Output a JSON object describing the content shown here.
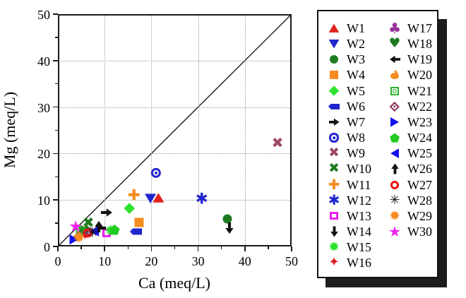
{
  "chart_data": {
    "type": "scatter",
    "title": "",
    "xlabel": "Ca (meq/L)",
    "ylabel": "Mg (meq/L)",
    "xlim": [
      0,
      50
    ],
    "ylim": [
      0,
      50
    ],
    "xticks": [
      0,
      10,
      20,
      30,
      40,
      50
    ],
    "yticks": [
      0,
      10,
      20,
      30,
      40,
      50
    ],
    "minor_tick_step": 5,
    "grid": {
      "style": "dotted",
      "color": "#9b9b9b",
      "positions": [
        10,
        20,
        30,
        40
      ]
    },
    "reference_line": {
      "type": "1:1 diagonal",
      "from": [
        0,
        0
      ],
      "to": [
        50,
        50
      ],
      "color": "#1a1a1a"
    },
    "legend_position": "outside-right boxed with drop shadow",
    "series": [
      {
        "name": "W1",
        "marker": "triangle-up",
        "color": "#e0251d",
        "points": [
          [
            21.5,
            10.5
          ]
        ]
      },
      {
        "name": "W2",
        "marker": "triangle-down",
        "color": "#2125cc",
        "points": [
          [
            19.8,
            10.3
          ]
        ]
      },
      {
        "name": "W3",
        "marker": "circle",
        "color": "#1f7a1f",
        "points": [
          [
            36.3,
            5.9
          ]
        ]
      },
      {
        "name": "W4",
        "marker": "square",
        "color": "#f68b1f",
        "points": [
          [
            17.4,
            5.1
          ]
        ]
      },
      {
        "name": "W5",
        "marker": "diamond",
        "color": "#2ee32e",
        "points": [
          [
            15.3,
            8.2
          ]
        ]
      },
      {
        "name": "W6",
        "marker": "flat-left",
        "color": "#2125cc",
        "points": [
          [
            16.7,
            3.2
          ]
        ]
      },
      {
        "name": "W7",
        "marker": "arrow-right",
        "color": "#111111",
        "points": [
          [
            10.4,
            7.3
          ]
        ]
      },
      {
        "name": "W8",
        "marker": "donut",
        "color": "#2125cc",
        "points": [
          [
            21.0,
            15.8
          ]
        ]
      },
      {
        "name": "W9",
        "marker": "x-cross",
        "color": "#9e4a66",
        "points": [
          [
            47.0,
            22.4
          ]
        ]
      },
      {
        "name": "W10",
        "marker": "x-cross",
        "color": "#1f7a1f",
        "points": [
          [
            6.5,
            5.2
          ]
        ]
      },
      {
        "name": "W11",
        "marker": "plus",
        "color": "#f68b1f",
        "points": [
          [
            16.3,
            10.9
          ]
        ]
      },
      {
        "name": "W12",
        "marker": "asterisk-heavy",
        "color": "#2125cc",
        "points": [
          [
            30.8,
            10.2
          ]
        ]
      },
      {
        "name": "W13",
        "marker": "open-square",
        "color": "#ee22ee",
        "points": [
          [
            10.4,
            2.9
          ]
        ]
      },
      {
        "name": "W14",
        "marker": "arrow-down",
        "color": "#111111",
        "points": [
          [
            36.7,
            3.9
          ]
        ]
      },
      {
        "name": "W15",
        "marker": "sunburst",
        "color": "#2ee32e",
        "points": [
          [
            11.3,
            3.3
          ]
        ]
      },
      {
        "name": "W16",
        "marker": "star4",
        "color": "#dd1f1f",
        "points": [
          [
            5.8,
            2.4
          ]
        ]
      },
      {
        "name": "W17",
        "marker": "club",
        "color": "#993399",
        "points": [
          [
            5.2,
            3.1
          ]
        ]
      },
      {
        "name": "W18",
        "marker": "heart",
        "color": "#1f7a1f",
        "points": [
          [
            5.6,
            3.4
          ]
        ]
      },
      {
        "name": "W19",
        "marker": "arrow-left",
        "color": "#111111",
        "points": [
          [
            9.0,
            3.9
          ]
        ]
      },
      {
        "name": "W20",
        "marker": "apple",
        "color": "#f68b1f",
        "points": [
          [
            4.3,
            2.1
          ]
        ]
      },
      {
        "name": "W21",
        "marker": "nested-square",
        "color": "#2fae2f",
        "points": [
          [
            4.9,
            3.4
          ]
        ]
      },
      {
        "name": "W22",
        "marker": "diamond-dot",
        "color": "#8b2a52",
        "points": [
          [
            6.9,
            3.0
          ]
        ]
      },
      {
        "name": "W23",
        "marker": "triangle-right",
        "color": "#1111ee",
        "points": [
          [
            3.4,
            1.5
          ]
        ]
      },
      {
        "name": "W24",
        "marker": "pentagon",
        "color": "#22cc22",
        "points": [
          [
            12.1,
            3.6
          ]
        ]
      },
      {
        "name": "W25",
        "marker": "triangle-left",
        "color": "#1111ee",
        "points": [
          [
            7.8,
            3.3
          ]
        ]
      },
      {
        "name": "W26",
        "marker": "arrow-up",
        "color": "#111111",
        "points": [
          [
            8.8,
            4.2
          ]
        ]
      },
      {
        "name": "W27",
        "marker": "open-circle",
        "color": "#ee1111",
        "points": [
          [
            6.3,
            2.9
          ]
        ]
      },
      {
        "name": "W28",
        "marker": "asterisk-thin",
        "color": "#111111",
        "points": [
          [
            7.4,
            3.1
          ]
        ]
      },
      {
        "name": "W29",
        "marker": "sunburst",
        "color": "#f68b1f",
        "points": [
          [
            4.5,
            1.8
          ]
        ]
      },
      {
        "name": "W30",
        "marker": "star",
        "color": "#ee22ee",
        "points": [
          [
            3.8,
            4.3
          ]
        ]
      }
    ]
  },
  "legend": {
    "columns": [
      16,
      14
    ]
  }
}
